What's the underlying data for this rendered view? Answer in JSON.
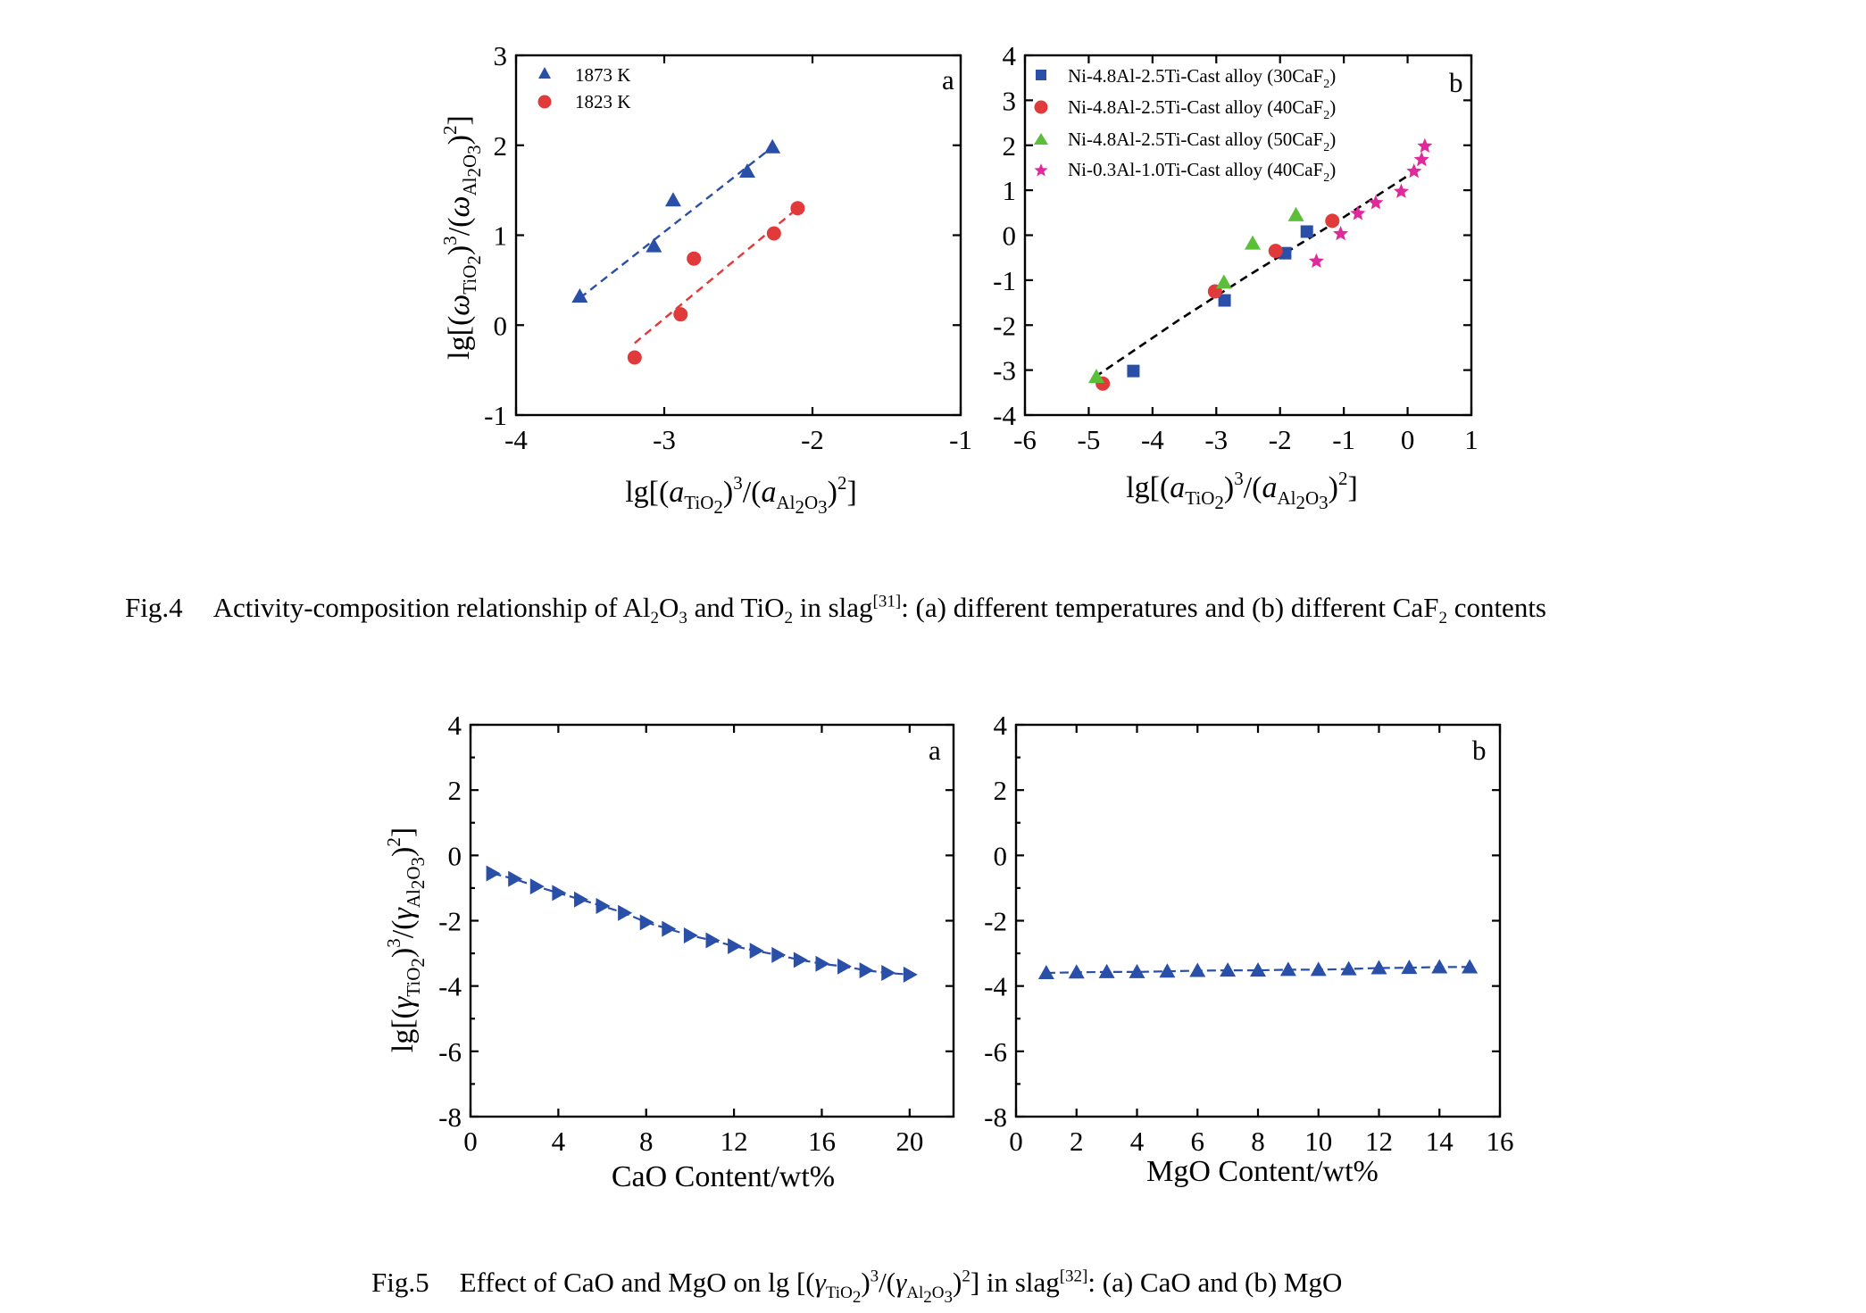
{
  "figure4": {
    "caption": {
      "number": "Fig.4",
      "pre": "Activity-composition relationship of Al",
      "s1": "2",
      "m1": "O",
      "s2": "3",
      "m2": " and TiO",
      "s3": "2",
      "m3": " in slag",
      "ref": "[31]",
      "m4": ": (a) different temperatures and (b) different CaF",
      "s4": "2",
      "post": " contents"
    }
  },
  "figure5": {
    "caption": {
      "number": "Fig.5",
      "pre": "Effect of CaO and MgO on lg [(",
      "g1": "γ",
      "s1": "TiO",
      "s1b": "2",
      "m1": ")",
      "p1": "3",
      "m2": "/(",
      "g2": "γ",
      "s2": "Al",
      "s2b": "2",
      "s2c": "O",
      "s2d": "3",
      "m3": ")",
      "p2": "2",
      "m4": "] in slag",
      "ref": "[32]",
      "post": ": (a) CaO and (b) MgO"
    }
  },
  "chart_data": [
    {
      "id": "fig4a",
      "type": "scatter",
      "panel_label": "a",
      "xlim": [
        -4,
        -1
      ],
      "ylim": [
        -1,
        3
      ],
      "xticks": [
        -4,
        -3,
        -2,
        -1
      ],
      "yticks": [
        -1,
        0,
        1,
        2,
        3
      ],
      "xlabel": "lg[(a_TiO2)^3/(a_Al2O3)^2]",
      "ylabel": "lg[(ω_TiO2)^3/(ω_Al2O3)^2]",
      "legend_position": "top-left",
      "series": [
        {
          "name": "1873 K",
          "marker": "triangle",
          "color": "#2a4fa8",
          "points": [
            [
              -3.57,
              0.32
            ],
            [
              -3.07,
              0.88
            ],
            [
              -2.94,
              1.39
            ],
            [
              -2.44,
              1.71
            ],
            [
              -2.27,
              1.98
            ]
          ],
          "fit": [
            [
              -3.57,
              0.3
            ],
            [
              -2.27,
              1.98
            ]
          ]
        },
        {
          "name": "1823 K",
          "marker": "circle",
          "color": "#e03a3a",
          "points": [
            [
              -3.2,
              -0.36
            ],
            [
              -2.89,
              0.12
            ],
            [
              -2.8,
              0.74
            ],
            [
              -2.26,
              1.02
            ],
            [
              -2.1,
              1.3
            ]
          ],
          "fit": [
            [
              -3.2,
              -0.2
            ],
            [
              -2.1,
              1.3
            ]
          ]
        }
      ]
    },
    {
      "id": "fig4b",
      "type": "scatter",
      "panel_label": "b",
      "xlim": [
        -6,
        1
      ],
      "ylim": [
        -4,
        4
      ],
      "xticks": [
        -6,
        -5,
        -4,
        -3,
        -2,
        -1,
        0,
        1
      ],
      "yticks": [
        -4,
        -3,
        -2,
        -1,
        0,
        1,
        2,
        3,
        4
      ],
      "xlabel": "lg[(a_TiO2)^3/(a_Al2O3)^2]",
      "legend_position": "top-left",
      "legend": [
        {
          "pre": "Ni-4.8Al-2.5Ti-Cast alloy (30CaF",
          "sub": "2",
          "post": ")"
        },
        {
          "pre": "Ni-4.8Al-2.5Ti-Cast alloy (40CaF",
          "sub": "2",
          "post": ")"
        },
        {
          "pre": "Ni-4.8Al-2.5Ti-Cast alloy (50CaF",
          "sub": "2",
          "post": ")"
        },
        {
          "pre": "Ni-0.3Al-1.0Ti-Cast alloy (40CaF",
          "sub": "2",
          "post": ")"
        }
      ],
      "series": [
        {
          "name": "Ni-4.8Al-2.5Ti-Cast alloy (30CaF2)",
          "marker": "square",
          "color": "#2a4fa8",
          "points": [
            [
              -4.3,
              -3.02
            ],
            [
              -2.87,
              -1.45
            ],
            [
              -1.92,
              -0.4
            ],
            [
              -1.58,
              0.08
            ]
          ]
        },
        {
          "name": "Ni-4.8Al-2.5Ti-Cast alloy (40CaF2)",
          "marker": "circle",
          "color": "#e03a3a",
          "points": [
            [
              -4.78,
              -3.3
            ],
            [
              -3.02,
              -1.25
            ],
            [
              -2.07,
              -0.35
            ],
            [
              -1.18,
              0.32
            ]
          ]
        },
        {
          "name": "Ni-4.8Al-2.5Ti-Cast alloy (50CaF2)",
          "marker": "triangle",
          "color": "#5cbf3a",
          "points": [
            [
              -4.88,
              -3.15
            ],
            [
              -2.88,
              -1.05
            ],
            [
              -2.43,
              -0.18
            ],
            [
              -1.75,
              0.45
            ]
          ]
        },
        {
          "name": "Ni-0.3Al-1.0Ti-Cast alloy (40CaF2)",
          "marker": "star",
          "color": "#e0299a",
          "points": [
            [
              -1.43,
              -0.58
            ],
            [
              -1.05,
              0.03
            ],
            [
              -0.78,
              0.48
            ],
            [
              -0.5,
              0.72
            ],
            [
              -0.1,
              0.97
            ],
            [
              0.1,
              1.42
            ],
            [
              0.22,
              1.68
            ],
            [
              0.27,
              1.98
            ]
          ]
        }
      ],
      "fit": [
        [
          -4.9,
          -3.15
        ],
        [
          -3.6,
          -1.9
        ],
        [
          -2.5,
          -0.9
        ],
        [
          -1.0,
          0.4
        ],
        [
          0.22,
          1.52
        ]
      ]
    },
    {
      "id": "fig5a",
      "type": "line",
      "panel_label": "a",
      "xlim": [
        0,
        22
      ],
      "ylim": [
        -8,
        4
      ],
      "xticks": [
        0,
        4,
        8,
        12,
        16,
        20
      ],
      "yticks": [
        -8,
        -6,
        -4,
        -2,
        0,
        2,
        4
      ],
      "xlabel": "CaO Content/wt%",
      "ylabel": "lg[(γ_TiO2)^3/(γ_Al2O3)^2]",
      "series": [
        {
          "name": "",
          "marker": "triangle-right",
          "color": "#2a4fa8",
          "x": [
            1,
            2,
            3,
            4,
            5,
            6,
            7,
            8,
            9,
            10,
            11,
            12,
            13,
            14,
            15,
            16,
            17,
            18,
            19,
            20
          ],
          "y": [
            -0.55,
            -0.72,
            -0.95,
            -1.15,
            -1.35,
            -1.55,
            -1.76,
            -2.05,
            -2.25,
            -2.45,
            -2.6,
            -2.78,
            -2.92,
            -3.05,
            -3.2,
            -3.32,
            -3.4,
            -3.52,
            -3.6,
            -3.65
          ]
        }
      ]
    },
    {
      "id": "fig5b",
      "type": "line",
      "panel_label": "b",
      "xlim": [
        0,
        16
      ],
      "ylim": [
        -8,
        4
      ],
      "xticks": [
        0,
        2,
        4,
        6,
        8,
        10,
        12,
        14,
        16
      ],
      "yticks": [
        -8,
        -6,
        -4,
        -2,
        0,
        2,
        4
      ],
      "xlabel": "MgO Content/wt%",
      "series": [
        {
          "name": "",
          "marker": "triangle",
          "color": "#2a4fa8",
          "x": [
            1,
            2,
            3,
            4,
            5,
            6,
            7,
            8,
            9,
            10,
            11,
            12,
            13,
            14,
            15
          ],
          "y": [
            -3.6,
            -3.58,
            -3.57,
            -3.57,
            -3.55,
            -3.53,
            -3.52,
            -3.52,
            -3.5,
            -3.5,
            -3.48,
            -3.45,
            -3.44,
            -3.42,
            -3.42
          ]
        }
      ]
    }
  ]
}
